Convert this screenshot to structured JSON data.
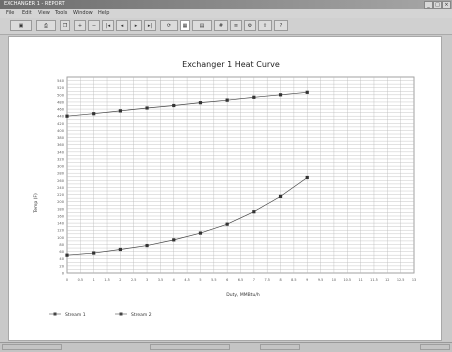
{
  "window": {
    "title": "EXCHANGER 1 - REPORT"
  },
  "menu": [
    "File",
    "Edit",
    "View",
    "Tools",
    "Window",
    "Help"
  ],
  "chart_data": {
    "type": "line",
    "title": "Exchanger 1 Heat Curve",
    "xlabel": "Duty, MMBtu/h",
    "ylabel": "Temp (F)",
    "x": [
      0,
      1,
      2,
      3,
      4,
      5,
      6,
      7,
      8,
      9
    ],
    "series": [
      {
        "name": "Stream 1",
        "values": [
          440,
          447,
          455,
          463,
          470,
          478,
          485,
          493,
          500,
          507
        ]
      },
      {
        "name": "Stream 2",
        "values": [
          50,
          56,
          66,
          77,
          93,
          112,
          137,
          172,
          215,
          268
        ]
      }
    ],
    "xlim": [
      0,
      13
    ],
    "ylim": [
      0,
      550
    ],
    "grid": true,
    "legend_position": "bottom-left"
  }
}
